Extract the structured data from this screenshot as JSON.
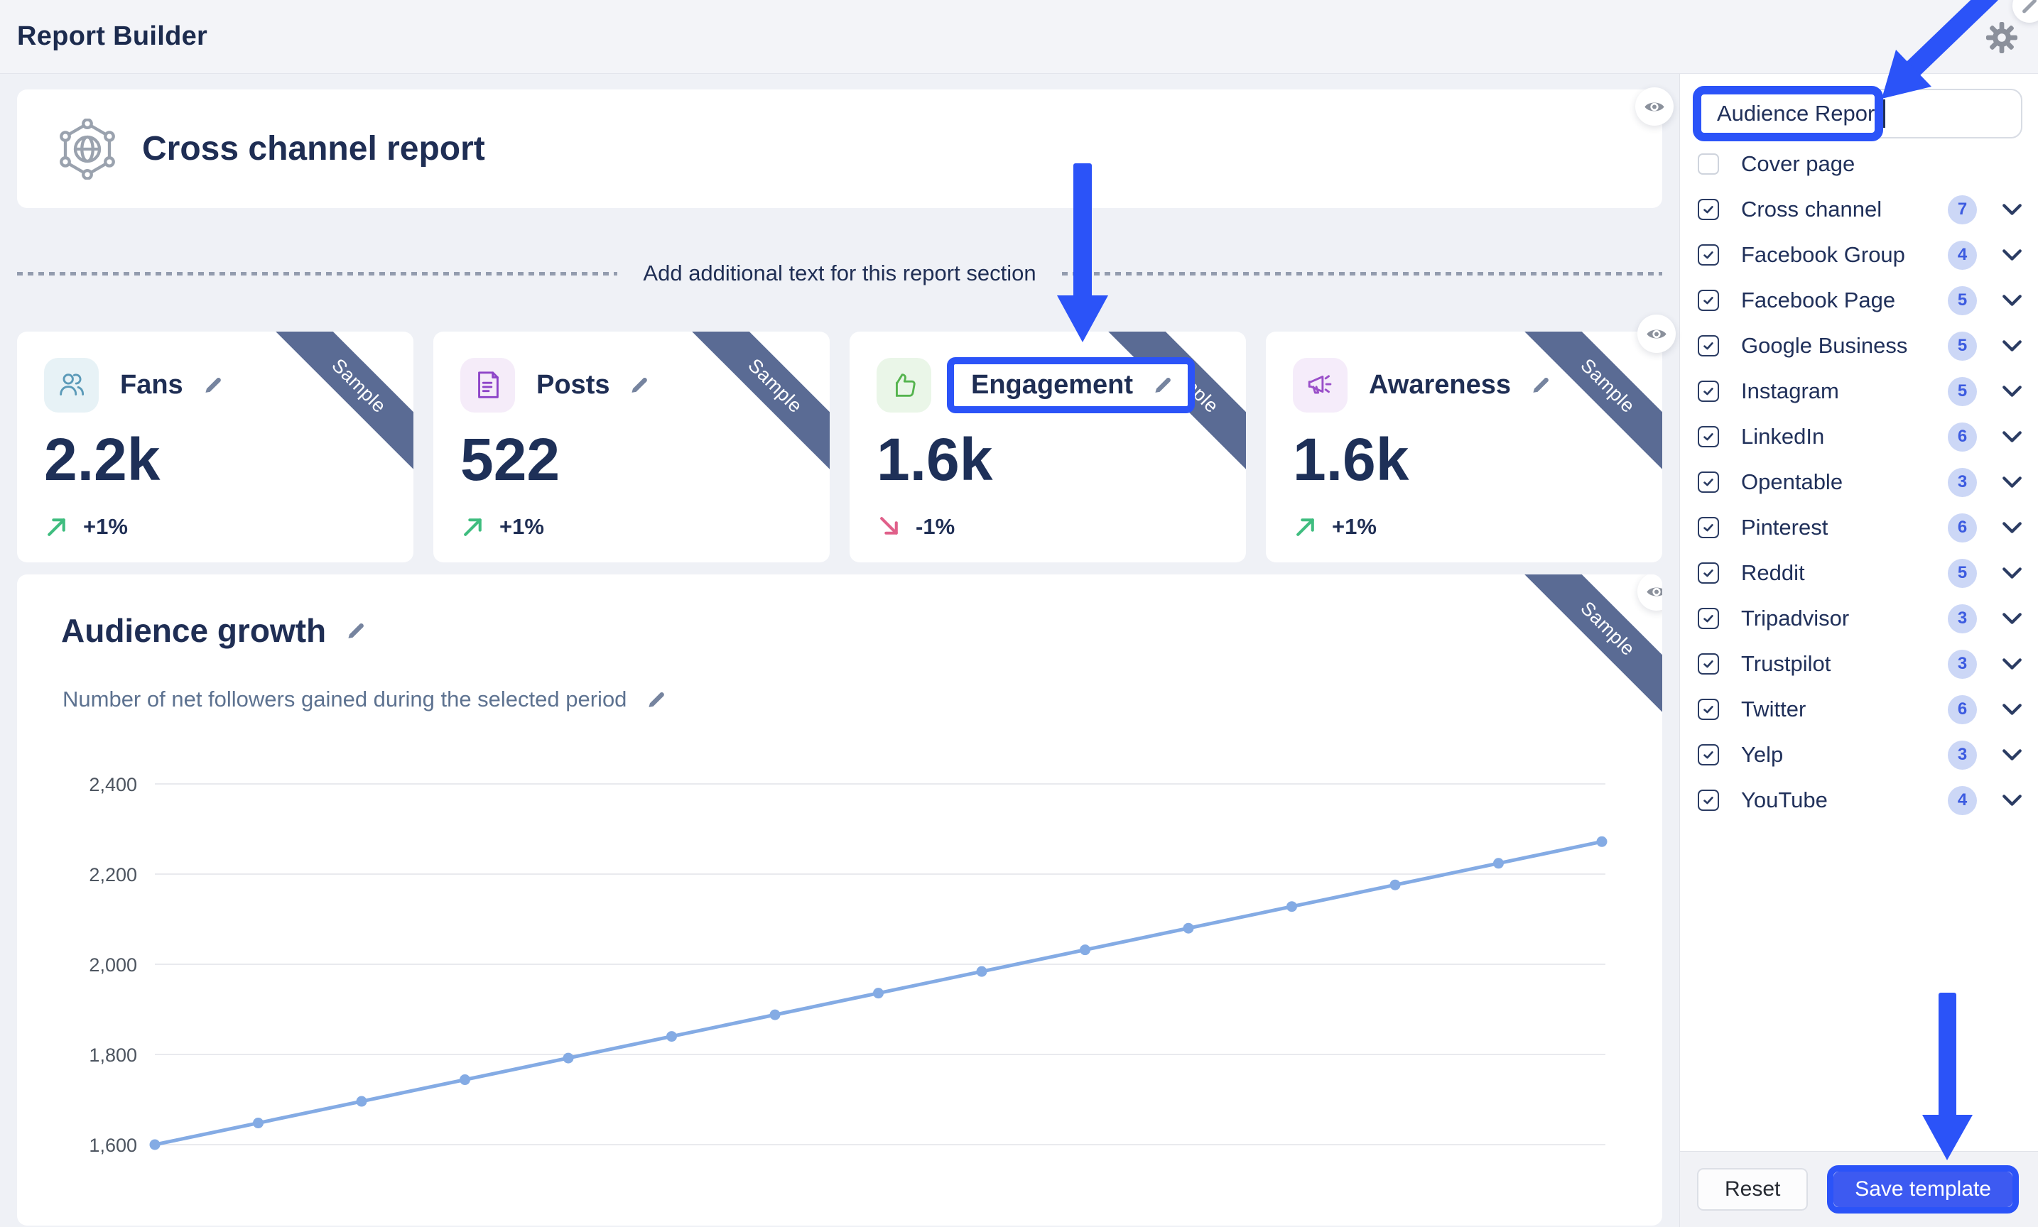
{
  "header": {
    "title": "Report Builder"
  },
  "main": {
    "cross_channel": {
      "title": "Cross channel report"
    },
    "divider_text": "Add additional text for this report section",
    "sample_ribbon": "Sample",
    "stats": [
      {
        "label": "Fans",
        "value": "2.2k",
        "trend": "+1%",
        "direction": "up",
        "icon": "users-icon",
        "accent": "#5b9ab8",
        "accent_bg": "#e7f2f6"
      },
      {
        "label": "Posts",
        "value": "522",
        "trend": "+1%",
        "direction": "up",
        "icon": "document-icon",
        "accent": "#8d44c8",
        "accent_bg": "#f5ecf9"
      },
      {
        "label": "Engagement",
        "value": "1.6k",
        "trend": "-1%",
        "direction": "down",
        "icon": "thumbs-up-icon",
        "accent": "#55b44e",
        "accent_bg": "#eaf6e8",
        "highlighted": true
      },
      {
        "label": "Awareness",
        "value": "1.6k",
        "trend": "+1%",
        "direction": "up",
        "icon": "megaphone-icon",
        "accent": "#9a4fc9",
        "accent_bg": "#f5ecfa"
      }
    ],
    "audience_growth": {
      "title": "Audience growth",
      "subtitle": "Number of net followers gained during the selected period"
    }
  },
  "chart_data": {
    "type": "line",
    "title": "Audience growth",
    "subtitle": "Number of net followers gained during the selected period",
    "values": [
      1600,
      1648,
      1696,
      1744,
      1792,
      1840,
      1888,
      1936,
      1984,
      2032,
      2080,
      2128,
      2176,
      2224,
      2272
    ],
    "yticks": [
      2400,
      2200,
      2000,
      1800,
      1600
    ],
    "ylim": [
      1600,
      2400
    ],
    "x_labels_visible": false,
    "grid": true,
    "legend": "none",
    "line_color": "#84abe4"
  },
  "sidebar": {
    "template_name_input": {
      "value": "Audience Report"
    },
    "items": [
      {
        "label": "Cover page",
        "checked": false,
        "count": null
      },
      {
        "label": "Cross channel",
        "checked": true,
        "count": 7
      },
      {
        "label": "Facebook Group",
        "checked": true,
        "count": 4
      },
      {
        "label": "Facebook Page",
        "checked": true,
        "count": 5
      },
      {
        "label": "Google Business",
        "checked": true,
        "count": 5
      },
      {
        "label": "Instagram",
        "checked": true,
        "count": 5
      },
      {
        "label": "LinkedIn",
        "checked": true,
        "count": 6
      },
      {
        "label": "Opentable",
        "checked": true,
        "count": 3
      },
      {
        "label": "Pinterest",
        "checked": true,
        "count": 6
      },
      {
        "label": "Reddit",
        "checked": true,
        "count": 5
      },
      {
        "label": "Tripadvisor",
        "checked": true,
        "count": 3
      },
      {
        "label": "Trustpilot",
        "checked": true,
        "count": 3
      },
      {
        "label": "Twitter",
        "checked": true,
        "count": 6
      },
      {
        "label": "Yelp",
        "checked": true,
        "count": 3
      },
      {
        "label": "YouTube",
        "checked": true,
        "count": 4
      }
    ],
    "footer": {
      "reset_label": "Reset",
      "save_label": "Save template"
    }
  },
  "annotations": {
    "color": "#2b53f8",
    "highlighted_targets": [
      "template-name-input",
      "engagement-stat-title",
      "save-template-button"
    ]
  },
  "colors": {
    "navy_text": "#1f2e54",
    "ribbon": "#5a6b94",
    "chart_line": "#84abe4",
    "badge_bg": "#ccd7f6",
    "badge_text": "#3c5be0",
    "trend_up": "#3fbd7f",
    "trend_down": "#e0608a",
    "save_button": "#3d5af1",
    "annotation_blue": "#2b53f8"
  }
}
